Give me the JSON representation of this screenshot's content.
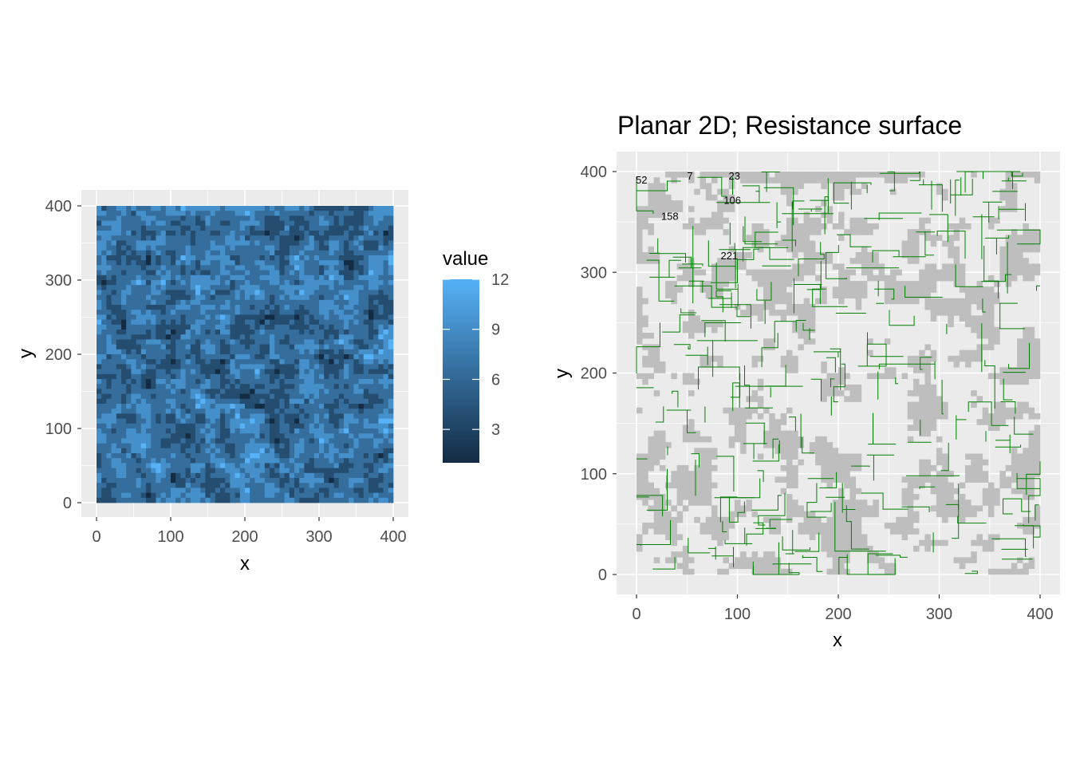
{
  "chart_data": [
    {
      "type": "heatmap",
      "title": "",
      "xlabel": "x",
      "ylabel": "y",
      "xlim": [
        0,
        400
      ],
      "ylim": [
        0,
        400
      ],
      "xticks": [
        0,
        100,
        200,
        300,
        400
      ],
      "yticks": [
        0,
        100,
        200,
        300,
        400
      ],
      "grid": true,
      "legend": {
        "title": "value",
        "placement": "right",
        "ticks": [
          3,
          6,
          9,
          12
        ],
        "range": [
          1,
          12
        ],
        "low_color": "#132B43",
        "high_color": "#56B1F7"
      }
    },
    {
      "type": "scatter",
      "title": "Planar 2D; Resistance surface",
      "xlabel": "x",
      "ylabel": "y",
      "xlim": [
        0,
        400
      ],
      "ylim": [
        0,
        400
      ],
      "xticks": [
        0,
        100,
        200,
        300,
        400
      ],
      "yticks": [
        0,
        100,
        200,
        300,
        400
      ],
      "grid": true,
      "habitat_color": "#bebebe",
      "path_color": "#008000",
      "point_labels": [
        {
          "label": "52",
          "x": 5,
          "y": 388
        },
        {
          "label": "7",
          "x": 53,
          "y": 392
        },
        {
          "label": "23",
          "x": 97,
          "y": 392
        },
        {
          "label": "106",
          "x": 95,
          "y": 368
        },
        {
          "label": "158",
          "x": 33,
          "y": 352
        },
        {
          "label": "221",
          "x": 92,
          "y": 313
        }
      ]
    }
  ]
}
